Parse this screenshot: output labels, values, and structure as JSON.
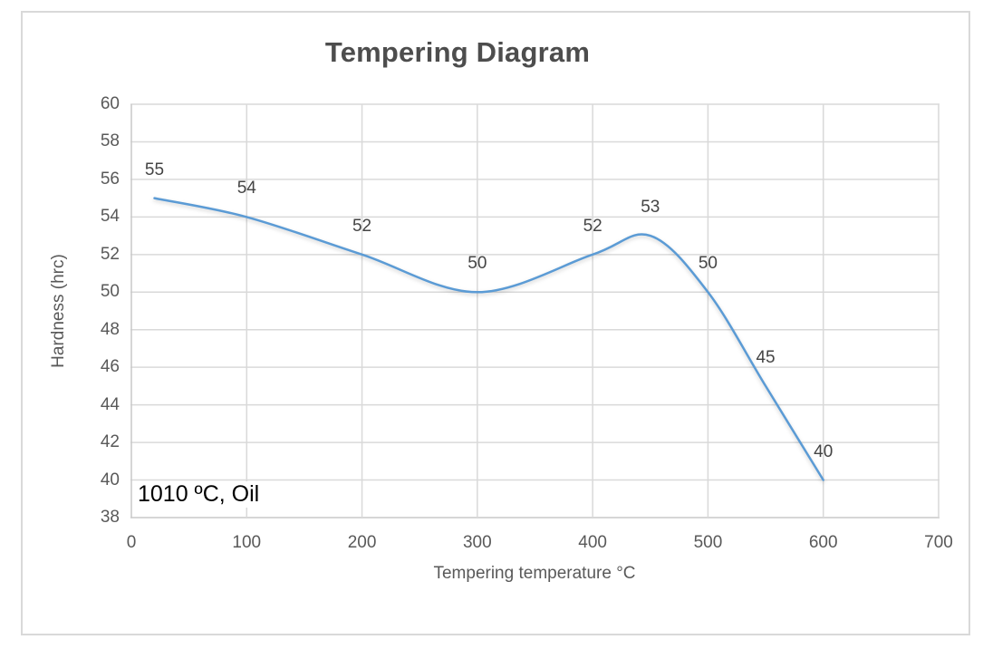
{
  "chart_data": {
    "type": "line",
    "title": "Tempering Diagram",
    "xlabel": "Tempering temperature °C",
    "ylabel": "Hardness (hrc)",
    "annotation": "1010 ºC, Oil",
    "x": [
      20,
      100,
      200,
      300,
      400,
      450,
      500,
      550,
      600
    ],
    "series": [
      {
        "name": "Hardness",
        "values": [
          55,
          54,
          52,
          50,
          52,
          53,
          50,
          45,
          40
        ]
      }
    ],
    "data_labels": [
      "55",
      "54",
      "52",
      "50",
      "52",
      "53",
      "50",
      "45",
      "40"
    ],
    "xlim": [
      0,
      700
    ],
    "ylim": [
      38,
      60
    ],
    "xtick_step": 100,
    "ytick_step": 2,
    "grid": true,
    "legend": "none",
    "smooth_line": true,
    "colors": {
      "line": "#5B9BD5",
      "gridline": "#D9D9D9",
      "axis_line": "#C9C9C9",
      "tick_text": "#595959",
      "title_text": "#4D4D4D",
      "data_label_text": "#444444",
      "annotation_text": "#000000",
      "chart_border": "#D9D9D9",
      "background": "#FFFFFF"
    }
  }
}
